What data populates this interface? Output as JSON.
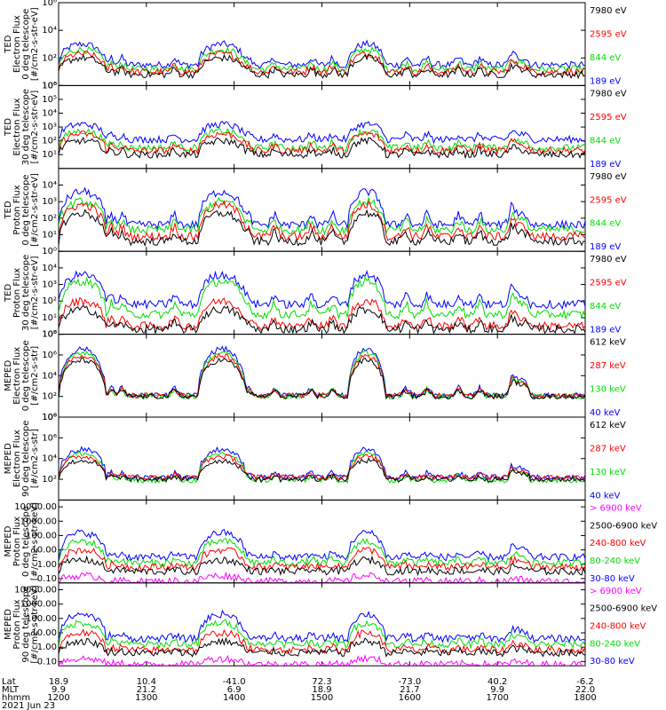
{
  "chart_data": {
    "type": "line",
    "x_ticks": {
      "hhmm": [
        "1200",
        "1300",
        "1400",
        "1500",
        "1600",
        "1700",
        "1800"
      ],
      "lat": [
        "18.9",
        "10.4",
        "-41.0",
        "72.3",
        "-73.0",
        "40.2",
        "-6.2"
      ],
      "mlt": [
        "9.9",
        "21.2",
        "6.9",
        "18.9",
        "21.7",
        "9.9",
        "22.0"
      ]
    },
    "bottom_labels": {
      "lat": "Lat",
      "mlt": "MLT",
      "hhmm": "hhmm",
      "date": "2021 Jun 23"
    },
    "panels": [
      {
        "ylabel_lines": [
          "TED",
          "Electron Flux",
          "0 deg telescope",
          "[#/cm2-s-str-eV]"
        ],
        "ylim": [
          1,
          1000000
        ],
        "scale": "log",
        "ticks": [
          {
            "v": 1,
            "t": "10⁰"
          },
          {
            "v": 100,
            "t": "10²"
          },
          {
            "v": 10000,
            "t": "10⁴"
          },
          {
            "v": 1000000,
            "t": "10⁶"
          }
        ],
        "series": [
          {
            "name": "7980 eV",
            "color": "#000000",
            "base": 0.8,
            "peak": 2.0
          },
          {
            "name": "2595 eV",
            "color": "#ff0000",
            "base": 1.0,
            "peak": 2.3
          },
          {
            "name": "844 eV",
            "color": "#00dd00",
            "base": 1.2,
            "peak": 2.6
          },
          {
            "name": "189 eV",
            "color": "#0000ff",
            "base": 1.5,
            "peak": 3.0
          }
        ]
      },
      {
        "ylabel_lines": [
          "TED",
          "Electron Flux",
          "30 deg telescope",
          "[#/cm2-s-str-eV]"
        ],
        "ylim": [
          1,
          1000000
        ],
        "scale": "log",
        "ticks": [
          {
            "v": 10,
            "t": "10¹"
          },
          {
            "v": 100,
            "t": "10²"
          },
          {
            "v": 1000,
            "t": "10³"
          },
          {
            "v": 10000,
            "t": "10⁴"
          },
          {
            "v": 100000,
            "t": "10⁵"
          },
          {
            "v": 1000000,
            "t": "10⁶"
          }
        ],
        "series": [
          {
            "name": "7980 eV",
            "color": "#000000",
            "base": 1.0,
            "peak": 2.0
          },
          {
            "name": "2595 eV",
            "color": "#ff0000",
            "base": 1.3,
            "peak": 2.5
          },
          {
            "name": "844 eV",
            "color": "#00dd00",
            "base": 1.5,
            "peak": 2.7
          },
          {
            "name": "189 eV",
            "color": "#0000ff",
            "base": 2.1,
            "peak": 3.2
          }
        ]
      },
      {
        "ylabel_lines": [
          "TED",
          "Proton Flux",
          "0 deg telescope",
          "[#/cm2-s-str-eV]"
        ],
        "ylim": [
          1,
          100000
        ],
        "scale": "log",
        "ticks": [
          {
            "v": 1,
            "t": "10⁰"
          },
          {
            "v": 10,
            "t": "10¹"
          },
          {
            "v": 100,
            "t": "10²"
          },
          {
            "v": 1000,
            "t": "10³"
          },
          {
            "v": 10000,
            "t": "10⁴"
          }
        ],
        "series": [
          {
            "name": "7980 eV",
            "color": "#000000",
            "base": 0.6,
            "peak": 2.3
          },
          {
            "name": "2595 eV",
            "color": "#ff0000",
            "base": 0.9,
            "peak": 2.8
          },
          {
            "name": "844 eV",
            "color": "#00dd00",
            "base": 1.3,
            "peak": 3.0
          },
          {
            "name": "189 eV",
            "color": "#0000ff",
            "base": 1.6,
            "peak": 3.6
          }
        ]
      },
      {
        "ylabel_lines": [
          "TED",
          "Proton Flux",
          "30 deg telescope",
          "[#/cm2-s-str-eV]"
        ],
        "ylim": [
          1,
          100000
        ],
        "scale": "log",
        "ticks": [
          {
            "v": 1,
            "t": "10⁰"
          },
          {
            "v": 10,
            "t": "10¹"
          },
          {
            "v": 100,
            "t": "10²"
          },
          {
            "v": 1000,
            "t": "10³"
          },
          {
            "v": 10000,
            "t": "10⁴"
          }
        ],
        "series": [
          {
            "name": "7980 eV",
            "color": "#000000",
            "base": 0.3,
            "peak": 1.5
          },
          {
            "name": "2595 eV",
            "color": "#ff0000",
            "base": 0.5,
            "peak": 2.0
          },
          {
            "name": "844 eV",
            "color": "#00dd00",
            "base": 1.2,
            "peak": 3.2
          },
          {
            "name": "189 eV",
            "color": "#0000ff",
            "base": 1.8,
            "peak": 3.6
          }
        ]
      },
      {
        "ylabel_lines": [
          "MEPED",
          "Electron Flux",
          "0 deg telescope",
          "[#/cm2-s-str]"
        ],
        "ylim": [
          1,
          100000000
        ],
        "scale": "log",
        "ticks": [
          {
            "v": 1,
            "t": "10⁰"
          },
          {
            "v": 100,
            "t": "10²"
          },
          {
            "v": 10000,
            "t": "10⁴"
          },
          {
            "v": 1000000,
            "t": "10⁶"
          },
          {
            "v": 100000000,
            "t": "10⁸"
          }
        ],
        "series": [
          {
            "name": "612 keV",
            "color": "#000000",
            "base": 2.0,
            "peak": 5.5
          },
          {
            "name": "287 keV",
            "color": "#ff0000",
            "base": 2.1,
            "peak": 5.9
          },
          {
            "name": "130 keV",
            "color": "#00dd00",
            "base": 2.0,
            "peak": 6.2
          },
          {
            "name": "40 keV",
            "color": "#0000ff",
            "base": 2.1,
            "peak": 6.6
          }
        ]
      },
      {
        "ylabel_lines": [
          "MEPED",
          "Electron Flux",
          "90 deg telescope",
          "[#/cm2-s-str]"
        ],
        "ylim": [
          1,
          100000000
        ],
        "scale": "log",
        "ticks": [
          {
            "v": 100,
            "t": "10²"
          },
          {
            "v": 10000,
            "t": "10⁴"
          },
          {
            "v": 1000000,
            "t": "10⁶"
          },
          {
            "v": 100000000,
            "t": "10⁸"
          }
        ],
        "series": [
          {
            "name": "612 keV",
            "color": "#000000",
            "base": 2.0,
            "peak": 3.8
          },
          {
            "name": "287 keV",
            "color": "#ff0000",
            "base": 2.2,
            "peak": 4.2
          },
          {
            "name": "130 keV",
            "color": "#00dd00",
            "base": 1.9,
            "peak": 4.5
          },
          {
            "name": "40 keV",
            "color": "#0000ff",
            "base": 2.2,
            "peak": 4.9
          }
        ]
      },
      {
        "ylabel_lines": [
          "MEPED",
          "Proton Flux",
          "0 deg telescope",
          "[#/cm2-s-str-keV]"
        ],
        "ylim": [
          0.05,
          30000
        ],
        "scale": "log",
        "ticks": [
          {
            "v": 0.1,
            "t": "0.10"
          },
          {
            "v": 1,
            "t": "1.00"
          },
          {
            "v": 10,
            "t": "10.00"
          },
          {
            "v": 100,
            "t": "100.00"
          },
          {
            "v": 1000,
            "t": "1000.00"
          },
          {
            "v": 10000,
            "t": "10000.00"
          }
        ],
        "series": [
          {
            "name": "> 6900 keV",
            "color": "#ff00ff",
            "base": -1.2,
            "peak": -0.8
          },
          {
            "name": "2500-6900 keV",
            "color": "#000000",
            "base": -0.5,
            "peak": 0.3
          },
          {
            "name": "240-800 keV",
            "color": "#ff0000",
            "base": -0.2,
            "peak": 1.0
          },
          {
            "name": "80-240 keV",
            "color": "#00dd00",
            "base": 0.1,
            "peak": 1.6
          },
          {
            "name": "30-80 keV",
            "color": "#0000ff",
            "base": 0.5,
            "peak": 2.2
          }
        ]
      },
      {
        "ylabel_lines": [
          "MEPED",
          "Proton Flux",
          "90 deg telescope",
          "[#/cm2-s-str-keV]"
        ],
        "ylim": [
          0.05,
          30000
        ],
        "scale": "log",
        "ticks": [
          {
            "v": 0.1,
            "t": "0.10"
          },
          {
            "v": 1,
            "t": "1.00"
          },
          {
            "v": 10,
            "t": "10.00"
          },
          {
            "v": 100,
            "t": "100.00"
          },
          {
            "v": 1000,
            "t": "1000.00"
          },
          {
            "v": 10000,
            "t": "10000.00"
          }
        ],
        "series": [
          {
            "name": "> 6900 keV",
            "color": "#ff00ff",
            "base": -1.2,
            "peak": -0.8
          },
          {
            "name": "2500-6900 keV",
            "color": "#000000",
            "base": -0.4,
            "peak": 0.4
          },
          {
            "name": "240-800 keV",
            "color": "#ff0000",
            "base": -0.2,
            "peak": 1.0
          },
          {
            "name": "80-240 keV",
            "color": "#00dd00",
            "base": 0.2,
            "peak": 1.7
          },
          {
            "name": "30-80 keV",
            "color": "#0000ff",
            "base": 0.6,
            "peak": 2.3
          }
        ]
      }
    ]
  }
}
